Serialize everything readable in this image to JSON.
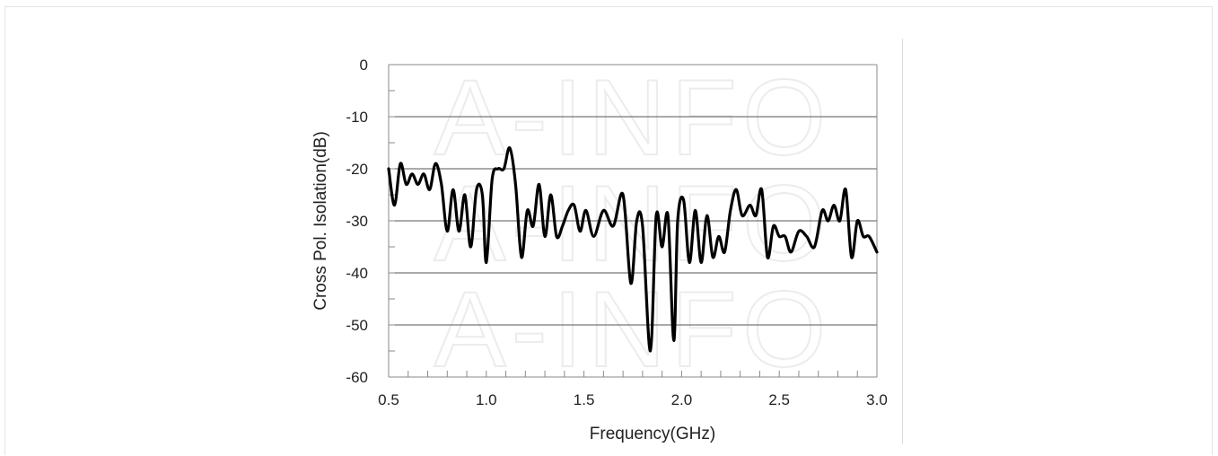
{
  "chart_data": {
    "type": "line",
    "title": "",
    "xlabel": "Frequency(GHz)",
    "ylabel": "Cross Pol. Isolation(dB)",
    "xlim": [
      0.5,
      3.0
    ],
    "ylim": [
      -60,
      0
    ],
    "x_ticks": [
      "0.5",
      "1.0",
      "1.5",
      "2.0",
      "2.5",
      "3.0"
    ],
    "y_ticks": [
      "0",
      "-10",
      "-20",
      "-30",
      "-40",
      "-50",
      "-60"
    ],
    "grid": "horizontal",
    "legend": "none",
    "watermark": "A-INFO",
    "colors": {
      "line": "#000000",
      "grid": "#555555",
      "axis": "#888888"
    },
    "series": [
      {
        "x": [
          0.5,
          0.53,
          0.56,
          0.59,
          0.62,
          0.65,
          0.68,
          0.71,
          0.74,
          0.77,
          0.8,
          0.83,
          0.86,
          0.89,
          0.92,
          0.95,
          0.98,
          1.0,
          1.03,
          1.06,
          1.09,
          1.12,
          1.15,
          1.18,
          1.21,
          1.24,
          1.27,
          1.3,
          1.33,
          1.36,
          1.39,
          1.42,
          1.45,
          1.48,
          1.51,
          1.55,
          1.6,
          1.65,
          1.7,
          1.74,
          1.77,
          1.8,
          1.84,
          1.87,
          1.9,
          1.93,
          1.96,
          1.98,
          2.01,
          2.04,
          2.07,
          2.1,
          2.13,
          2.16,
          2.19,
          2.22,
          2.25,
          2.28,
          2.31,
          2.35,
          2.38,
          2.41,
          2.44,
          2.47,
          2.5,
          2.53,
          2.56,
          2.6,
          2.64,
          2.68,
          2.72,
          2.75,
          2.78,
          2.81,
          2.84,
          2.87,
          2.9,
          2.93,
          2.96,
          3.0
        ],
        "y": [
          -20,
          -27,
          -19,
          -23,
          -21,
          -23,
          -21,
          -24,
          -19,
          -23,
          -32,
          -24,
          -32,
          -25,
          -35,
          -24,
          -25,
          -38,
          -22,
          -20,
          -20,
          -16,
          -23,
          -37,
          -28,
          -31,
          -23,
          -33,
          -25,
          -33,
          -31,
          -28,
          -27,
          -32,
          -28,
          -33,
          -28,
          -31,
          -25,
          -42,
          -30,
          -31,
          -55,
          -29,
          -35,
          -29,
          -53,
          -30,
          -26,
          -38,
          -28,
          -38,
          -29,
          -37,
          -33,
          -36,
          -28,
          -24,
          -29,
          -27,
          -29,
          -24,
          -37,
          -31,
          -33,
          -33,
          -36,
          -32,
          -33,
          -35,
          -28,
          -30,
          -27,
          -30,
          -24,
          -37,
          -30,
          -33,
          -33,
          -36
        ]
      }
    ]
  }
}
